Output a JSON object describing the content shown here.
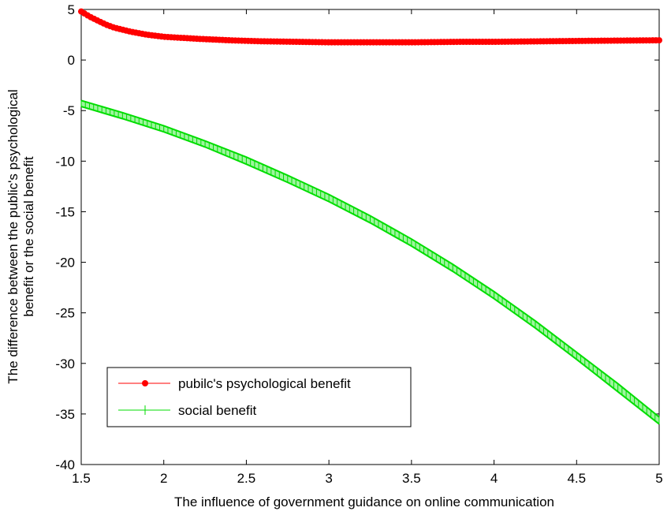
{
  "chart_data": {
    "type": "line",
    "title": "",
    "xlabel": "The influence of government guidance on online communication",
    "ylabel_lines": [
      "The difference between the public's psychological",
      "benefit or the social benefit"
    ],
    "xlim": [
      1.5,
      5
    ],
    "ylim": [
      -40,
      5
    ],
    "xticks": [
      "1.5",
      "2",
      "2.5",
      "3",
      "3.5",
      "4",
      "4.5",
      "5"
    ],
    "yticks": [
      "5",
      "0",
      "-5",
      "-10",
      "-15",
      "-20",
      "-25",
      "-30",
      "-35",
      "-40"
    ],
    "grid": false,
    "legend_position": "lower-left",
    "series": [
      {
        "name": "pubilc's psychological benefit",
        "color": "#ff0000",
        "marker": "circle",
        "x": [
          1.5,
          1.55,
          1.6,
          1.65,
          1.7,
          1.8,
          1.9,
          2.0,
          2.2,
          2.4,
          2.6,
          2.8,
          3.0,
          3.2,
          3.5,
          3.8,
          4.0,
          4.3,
          4.6,
          5.0
        ],
        "y": [
          4.8,
          4.3,
          3.9,
          3.5,
          3.2,
          2.8,
          2.5,
          2.3,
          2.1,
          1.95,
          1.85,
          1.8,
          1.75,
          1.75,
          1.75,
          1.8,
          1.8,
          1.85,
          1.9,
          1.95
        ]
      },
      {
        "name": "social benefit",
        "color": "#00dd00",
        "marker": "plus",
        "x": [
          1.5,
          1.75,
          2.0,
          2.25,
          2.5,
          2.75,
          3.0,
          3.25,
          3.5,
          3.75,
          4.0,
          4.25,
          4.5,
          4.75,
          5.0
        ],
        "y_upper": [
          -4.0,
          -5.2,
          -6.5,
          -8.0,
          -9.6,
          -11.4,
          -13.3,
          -15.4,
          -17.7,
          -20.2,
          -22.9,
          -25.8,
          -28.9,
          -32.0,
          -35.3
        ],
        "y_lower": [
          -4.6,
          -5.8,
          -7.1,
          -8.6,
          -10.3,
          -12.1,
          -14.0,
          -16.1,
          -18.4,
          -20.9,
          -23.6,
          -26.5,
          -29.6,
          -32.8,
          -36.0
        ]
      }
    ]
  }
}
